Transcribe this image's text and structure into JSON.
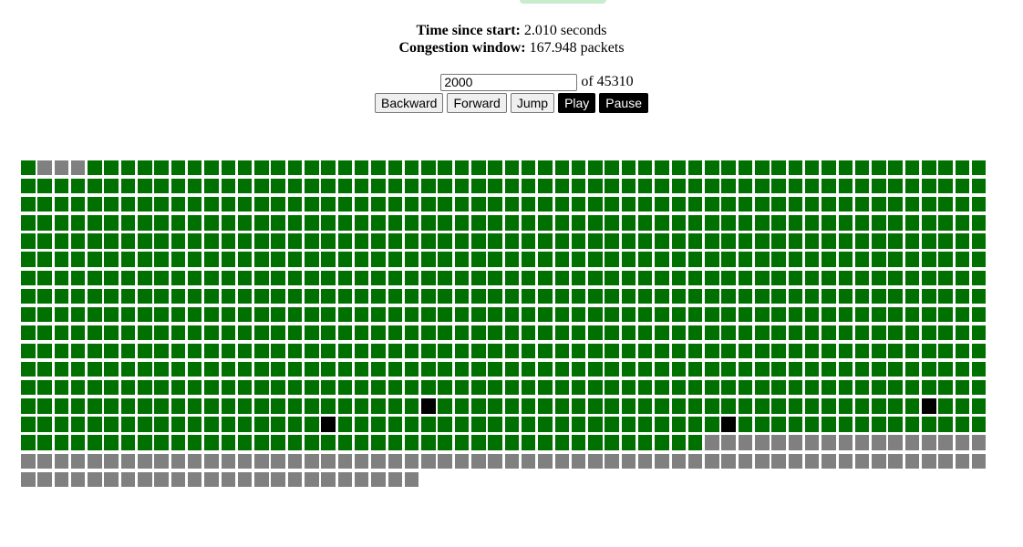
{
  "status": {
    "time_label": "Time since start:",
    "time_value": "2.010 seconds",
    "cwnd_label": "Congestion window:",
    "cwnd_value": "167.948 packets"
  },
  "controls": {
    "frame_value": "2000",
    "frame_total": "of 45310",
    "backward_label": "Backward",
    "forward_label": "Forward",
    "jump_label": "Jump",
    "play_label": "Play",
    "pause_label": "Pause"
  },
  "colors": {
    "acked": "#007000",
    "pending": "#808080",
    "lost": "#000000",
    "top_tab": "#c9eccf"
  },
  "packet_grid": {
    "columns": 58,
    "total_packets": 1010,
    "pending_first_row_indices": [
      1,
      2,
      3
    ],
    "lost_packets": [
      {
        "row": 13,
        "col": 24
      },
      {
        "row": 14,
        "col": 18
      },
      {
        "row": 14,
        "col": 42
      },
      {
        "row": 13,
        "col": 54
      }
    ],
    "pending_from_row": 15,
    "pending_from_col": 41
  }
}
